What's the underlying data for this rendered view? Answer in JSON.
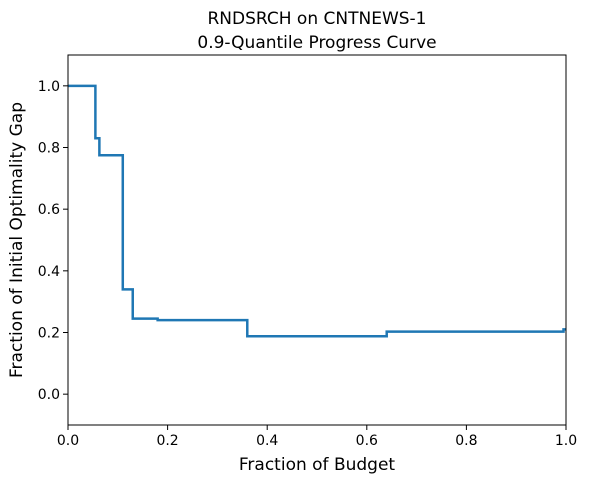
{
  "chart_data": {
    "type": "line",
    "title_line1": "RNDSRCH on CNTNEWS-1",
    "title_line2": "0.9-Quantile Progress Curve",
    "xlabel": "Fraction of Budget",
    "ylabel": "Fraction of Initial Optimality Gap",
    "xlim": [
      0.0,
      1.0
    ],
    "ylim": [
      -0.1,
      1.1
    ],
    "xticks": [
      "0.0",
      "0.2",
      "0.4",
      "0.6",
      "0.8",
      "1.0"
    ],
    "yticks": [
      "0.0",
      "0.2",
      "0.4",
      "0.6",
      "0.8",
      "1.0"
    ],
    "grid": false,
    "step": "post",
    "color": "#1f77b4",
    "series": [
      {
        "x": [
          0.0,
          0.055,
          0.063,
          0.11,
          0.13,
          0.18,
          0.36,
          0.64,
          0.995,
          1.0
        ],
        "y": [
          1.0,
          0.83,
          0.775,
          0.34,
          0.245,
          0.24,
          0.188,
          0.203,
          0.21,
          0.21
        ]
      }
    ]
  }
}
